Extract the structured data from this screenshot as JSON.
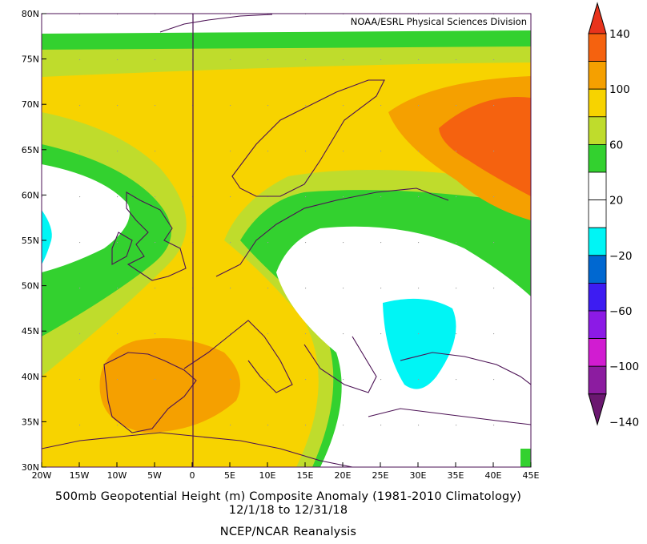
{
  "header": {
    "credit": "NOAA/ESRL Physical Sciences Division"
  },
  "map": {
    "lat_labels": [
      "80N",
      "75N",
      "70N",
      "65N",
      "60N",
      "55N",
      "50N",
      "45N",
      "40N",
      "35N",
      "30N"
    ],
    "lon_labels": [
      "20W",
      "15W",
      "10W",
      "5W",
      "0",
      "5E",
      "10E",
      "15E",
      "20E",
      "25E",
      "30E",
      "35E",
      "40E",
      "45E"
    ],
    "domain": {
      "lon_range": [
        -20,
        45
      ],
      "lat_range": [
        30,
        80
      ]
    }
  },
  "captions": {
    "line1": "500mb Geopotential Height (m) Composite Anomaly (1981-2010 Climatology)",
    "line2": "12/1/18  to 12/31/18",
    "line3": "NCEP/NCAR Reanalysis"
  },
  "colorbar": {
    "labels": [
      "140",
      "100",
      "60",
      "20",
      "−20",
      "−60",
      "−100",
      "−140"
    ],
    "colors": [
      "#e8331c",
      "#f5620f",
      "#f5a000",
      "#f7d300",
      "#bfdc2c",
      "#33d12f",
      "#ffffff",
      "#ffffff",
      "#00f5f5",
      "#0068d1",
      "#3d1cf2",
      "#8c1ae6",
      "#d11cd1",
      "#8c1ca0",
      "#6b1870"
    ]
  }
}
